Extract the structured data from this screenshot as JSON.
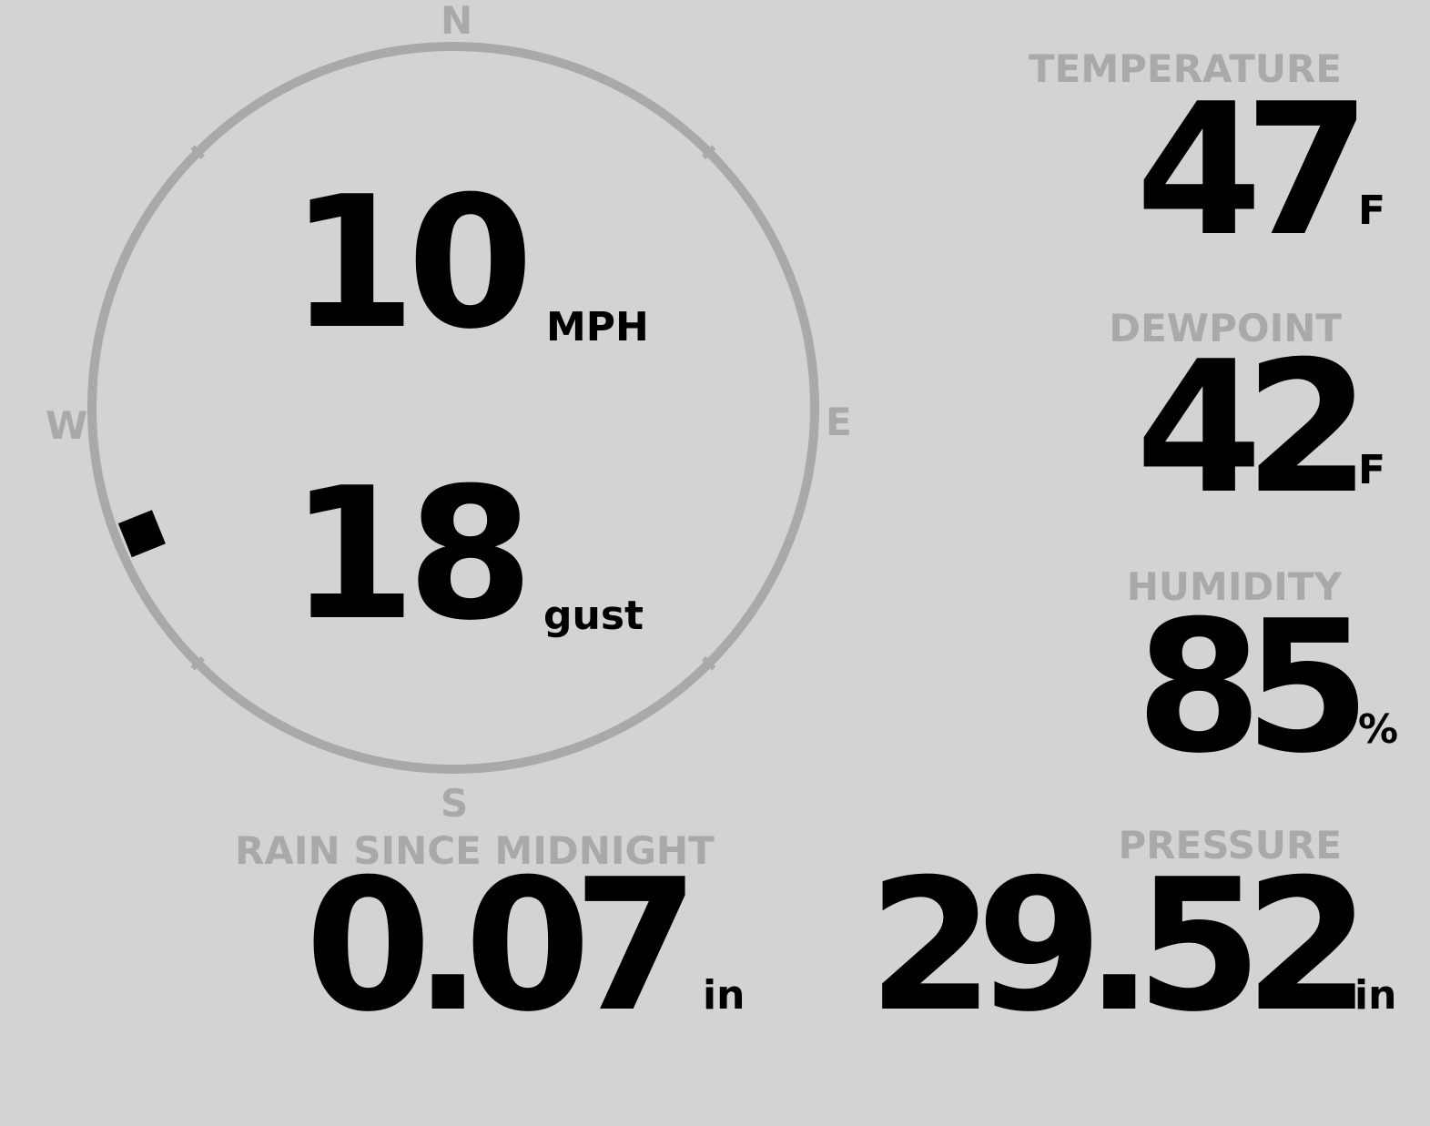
{
  "wind": {
    "speed": "10",
    "speed_unit": "MPH",
    "gust": "18",
    "gust_unit": "gust",
    "direction_deg": 248,
    "compass": {
      "n": "N",
      "e": "E",
      "s": "S",
      "w": "W"
    }
  },
  "temperature": {
    "label": "TEMPERATURE",
    "value": "47",
    "unit": "F"
  },
  "dewpoint": {
    "label": "DEWPOINT",
    "value": "42",
    "unit": "F"
  },
  "humidity": {
    "label": "HUMIDITY",
    "value": "85",
    "unit": "%"
  },
  "rain": {
    "label": "RAIN SINCE MIDNIGHT",
    "value": "0.07",
    "unit": "in"
  },
  "pressure": {
    "label": "PRESSURE",
    "value": "29.52",
    "unit": "in"
  },
  "colors": {
    "background": "#d3d3d3",
    "label": "#a9a9a9",
    "value": "#000000"
  }
}
